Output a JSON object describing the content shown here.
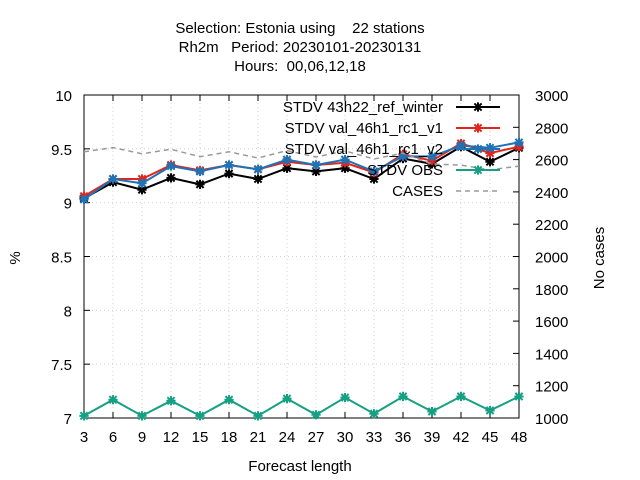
{
  "chart_data": {
    "type": "line",
    "title_lines": [
      "Selection: Estonia using    22 stations",
      "Rh2m   Period: 20230101-20230131",
      "Hours:  00,06,12,18"
    ],
    "xlabel": "Forecast length",
    "ylabel": "%",
    "y2label": "No cases",
    "x": [
      3,
      6,
      9,
      12,
      15,
      18,
      21,
      24,
      27,
      30,
      33,
      36,
      39,
      42,
      45,
      48
    ],
    "ylim": [
      7,
      10
    ],
    "yticks": [
      "7",
      "7.5",
      "8",
      "8.5",
      "9",
      "9.5",
      "10"
    ],
    "y2lim": [
      1000,
      3000
    ],
    "y2ticks": [
      "1000",
      "1200",
      "1400",
      "1600",
      "1800",
      "2000",
      "2200",
      "2400",
      "2600",
      "2800",
      "3000"
    ],
    "legend_position": "top-right",
    "series": [
      {
        "name": "STDV 43h22_ref_winter",
        "color": "#000000",
        "axis": "y",
        "marker": "star",
        "dash": "",
        "values": [
          9.04,
          9.19,
          9.12,
          9.23,
          9.17,
          9.27,
          9.22,
          9.32,
          9.29,
          9.32,
          9.22,
          9.41,
          9.36,
          9.52,
          9.38,
          9.51
        ]
      },
      {
        "name": "STDV val_46h1_rc1_v1",
        "color": "#e3241c",
        "axis": "y",
        "marker": "star",
        "dash": "",
        "values": [
          9.06,
          9.22,
          9.22,
          9.35,
          9.3,
          9.35,
          9.31,
          9.38,
          9.35,
          9.37,
          9.28,
          9.45,
          9.39,
          9.55,
          9.46,
          9.52
        ]
      },
      {
        "name": "STDV val_46h1_rc1_v2",
        "color": "#1f72b4",
        "axis": "y",
        "marker": "star",
        "dash": "",
        "values": [
          9.03,
          9.22,
          9.18,
          9.34,
          9.29,
          9.35,
          9.31,
          9.4,
          9.35,
          9.4,
          9.29,
          9.43,
          9.43,
          9.53,
          9.51,
          9.56
        ]
      },
      {
        "name": "STDV OBS",
        "color": "#16a083",
        "axis": "y",
        "marker": "star",
        "dash": "",
        "values": [
          7.02,
          7.17,
          7.02,
          7.16,
          7.02,
          7.17,
          7.02,
          7.18,
          7.03,
          7.19,
          7.04,
          7.2,
          7.06,
          7.2,
          7.07,
          7.2
        ]
      },
      {
        "name": "CASES",
        "color": "#999999",
        "axis": "y2",
        "marker": "",
        "dash": "5,4",
        "values": [
          2648,
          2674,
          2636,
          2664,
          2618,
          2648,
          2610,
          2656,
          2616,
          2654,
          2604,
          2640,
          2572,
          2566,
          2536,
          2560
        ]
      }
    ]
  }
}
